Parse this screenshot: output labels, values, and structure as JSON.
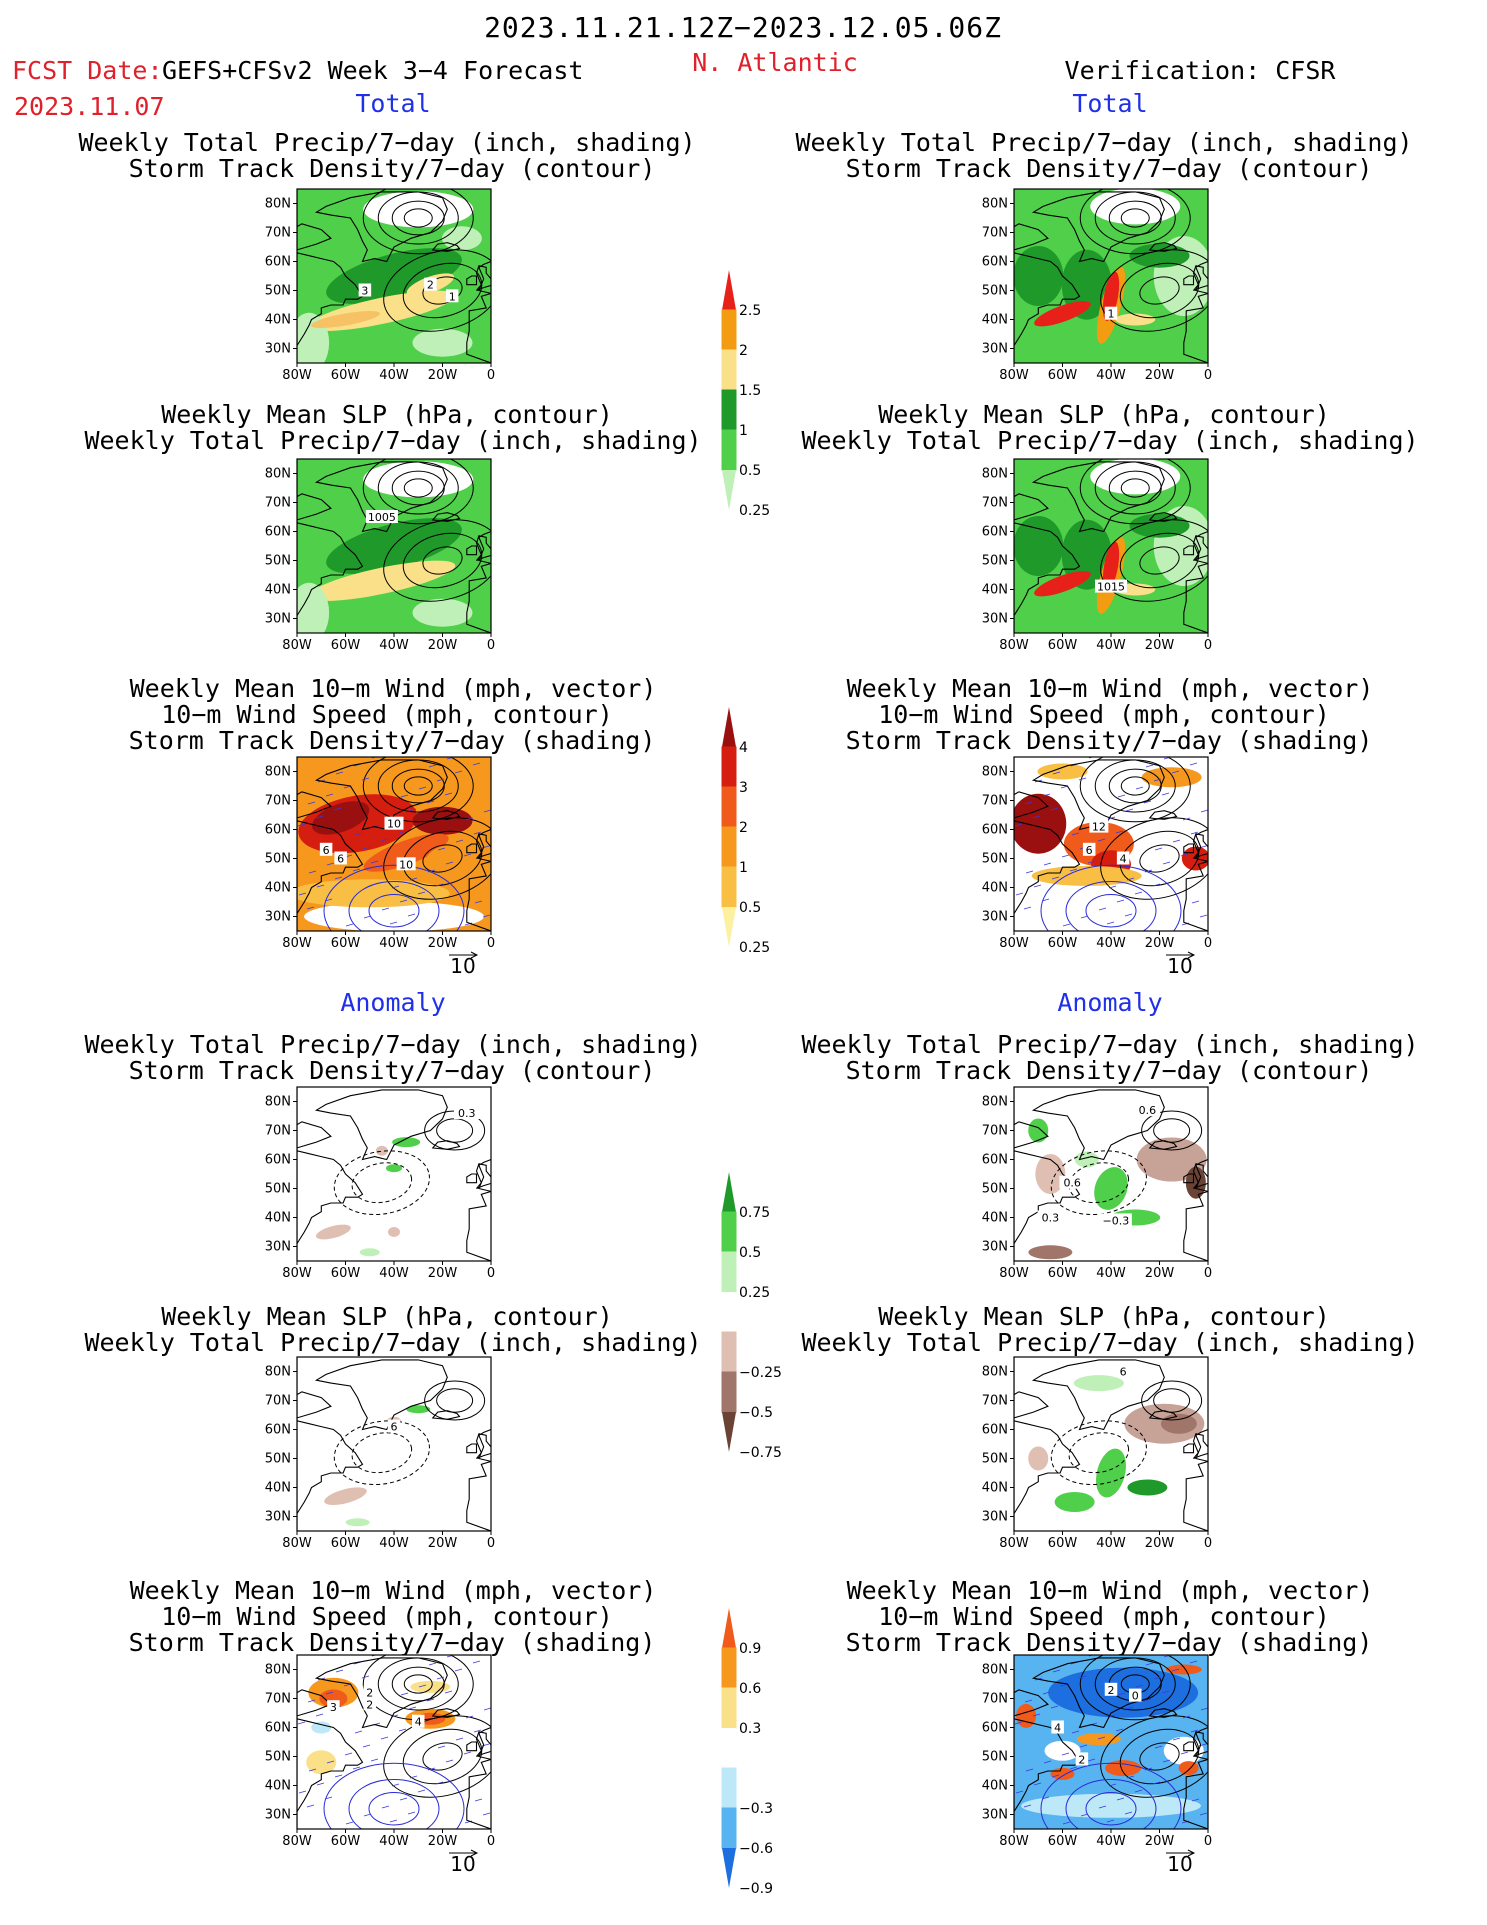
{
  "header": {
    "date_range": "2023.11.21.12Z−2023.12.05.06Z",
    "fcst_date_label": "FCST Date:",
    "model_label": "GEFS+CFSv2 Week 3−4 Forecast",
    "fcst_date_value": "2023.11.07",
    "region": "N. Atlantic",
    "verification": "Verification: CFSR"
  },
  "sections": {
    "total": "Total",
    "anomaly": "Anomaly"
  },
  "panel_titles": {
    "precip_storm": [
      "Weekly Total Precip/7−day (inch, shading)",
      "Storm Track Density/7−day (contour)"
    ],
    "slp_precip": [
      "Weekly Mean SLP (hPa, contour)",
      "Weekly Total Precip/7−day (inch, shading)"
    ],
    "wind_storm": [
      "Weekly Mean 10−m Wind (mph, vector)",
      "10−m Wind Speed (mph, contour)",
      "Storm Track Density/7−day (shading)"
    ]
  },
  "axes": {
    "x_ticks": [
      "80W",
      "60W",
      "40W",
      "20W",
      "0"
    ],
    "y_ticks": [
      "80N",
      "70N",
      "60N",
      "50N",
      "40N",
      "30N"
    ]
  },
  "vector_ref": "10",
  "colorbars": {
    "total_precip": {
      "labels": [
        "2.5",
        "2",
        "1.5",
        "1",
        "0.5",
        "0.25"
      ],
      "colors": [
        "#e8201a",
        "#f39c12",
        "#fbe08a",
        "#1f9a2a",
        "#4fcf4a",
        "#bff0b8"
      ]
    },
    "total_storm": {
      "labels": [
        "4",
        "3",
        "2",
        "1",
        "0.5",
        "0.25"
      ],
      "colors": [
        "#9a1010",
        "#d51d10",
        "#f05a1a",
        "#f7981e",
        "#f9bf45",
        "#fdf0a0"
      ]
    },
    "anom_precip": {
      "labels": [
        "0.75",
        "0.5",
        "0.25",
        "−0.25",
        "−0.5",
        "−0.75"
      ],
      "colors": [
        "#1f9a2a",
        "#4fcf4a",
        "#bff0b8",
        "#ffffff",
        "#e0bfb3",
        "#a0756a",
        "#6b4236"
      ]
    },
    "anom_storm": {
      "labels": [
        "0.9",
        "0.6",
        "0.3",
        "−0.3",
        "−0.6",
        "−0.9"
      ],
      "colors": [
        "#f05a1a",
        "#f7981e",
        "#fbe08a",
        "#ffffff",
        "#bde8f7",
        "#58b4f0",
        "#1d6fe0"
      ]
    }
  },
  "contour_labels": {
    "l_precip_storm": [
      "3",
      "2",
      "1"
    ],
    "r_precip_storm": [
      "1"
    ],
    "l_slp_precip": [
      "1005"
    ],
    "r_slp_precip": [
      "1015"
    ],
    "l_wind_storm": [
      "6",
      "10",
      "6",
      "10"
    ],
    "r_wind_storm": [
      "12",
      "6",
      "4"
    ],
    "l_anom_precip": [
      "0.3"
    ],
    "r_anom_precip": [
      "0.6",
      "0.6",
      "0.3",
      "−0.3"
    ],
    "l_anom_slp": [
      "6"
    ],
    "r_anom_slp": [
      "6"
    ],
    "l_anom_wind": [
      "3",
      "2",
      "2",
      "4"
    ],
    "r_anom_wind": [
      "2",
      "0",
      "4",
      "2"
    ]
  },
  "colors": {
    "ocean": "#ffffff",
    "land_line": "#000000",
    "title_red": "#e0202a",
    "title_blue": "#2030e8"
  }
}
